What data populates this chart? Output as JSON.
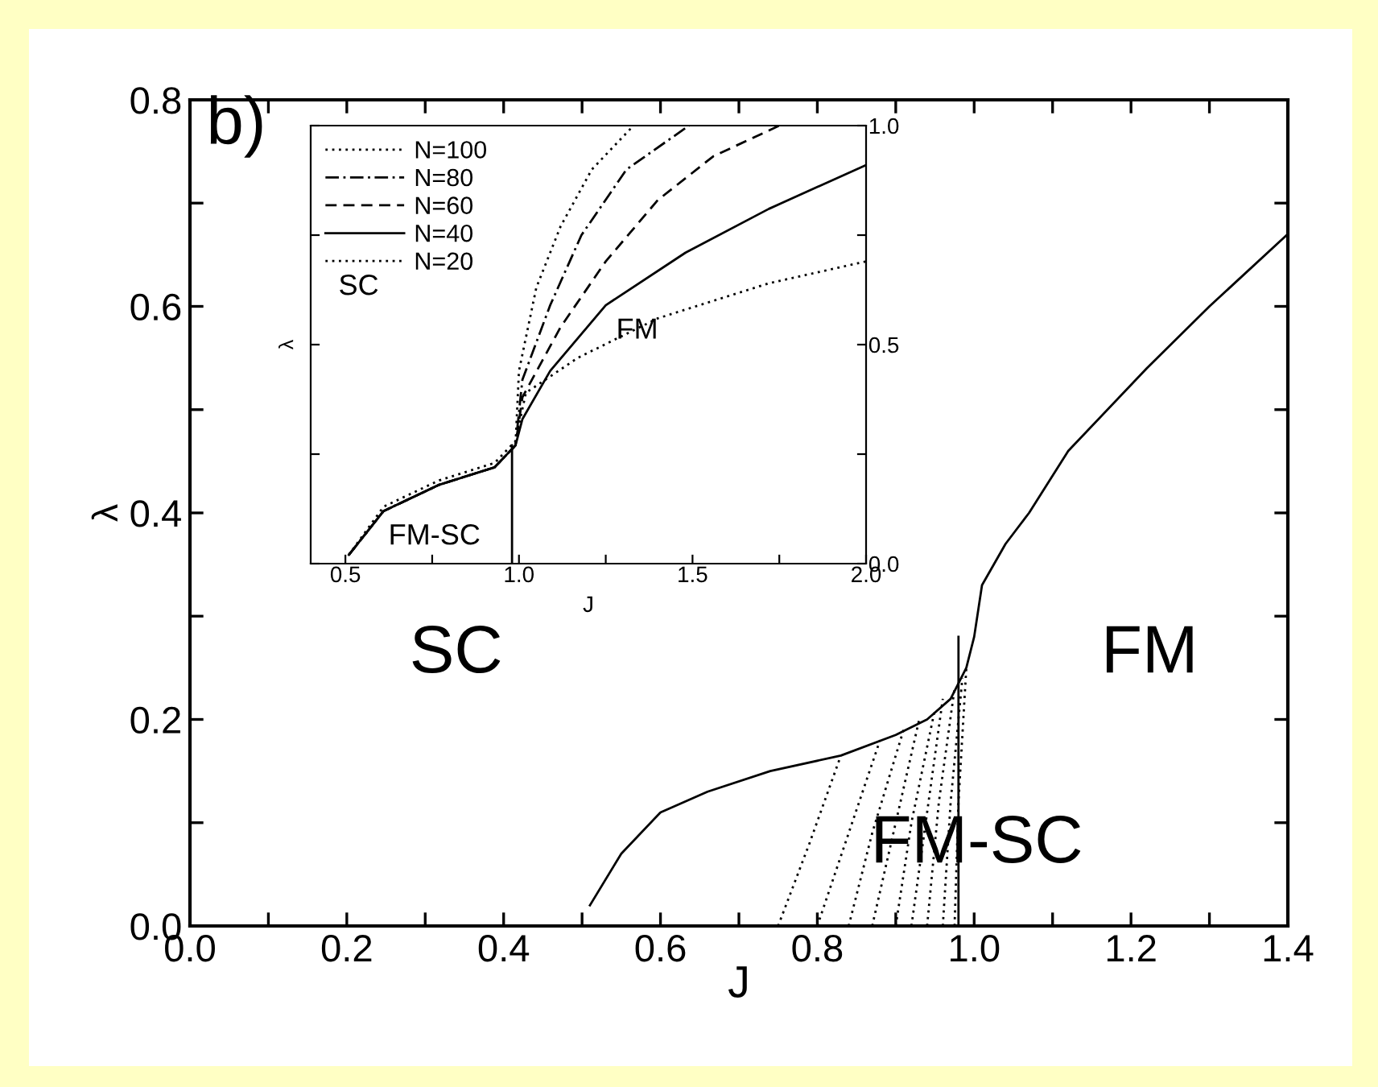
{
  "chart_data": [
    {
      "type": "line",
      "xlabel": "J",
      "ylabel": "λ",
      "annotations": [
        "b)",
        "SC",
        "FM",
        "FM-SC"
      ],
      "xlim": [
        0.0,
        1.4
      ],
      "ylim": [
        0.0,
        0.8
      ],
      "xticks": [
        {
          "value": 0,
          "label": "0.0"
        },
        {
          "value": 0.1,
          "label": null
        },
        0.2,
        {
          "value": 0.3,
          "label": null
        },
        0.4,
        {
          "value": 0.5,
          "label": null
        },
        0.6,
        {
          "value": 0.7,
          "label": null
        },
        0.8,
        {
          "value": 0.9,
          "label": null
        },
        {
          "value": 1,
          "label": "1.0"
        },
        {
          "value": 1.1,
          "label": null
        },
        1.2,
        {
          "value": 1.3,
          "label": null
        },
        1.4
      ],
      "yticks": [
        {
          "value": 0,
          "label": "0.0"
        },
        {
          "value": 0.1,
          "label": null
        },
        0.2,
        {
          "value": 0.3,
          "label": null
        },
        0.4,
        {
          "value": 0.5,
          "label": null
        },
        0.6,
        {
          "value": 0.7,
          "label": null
        },
        0.8
      ],
      "grid": false,
      "legend": false,
      "series": [
        {
          "color": "#000000",
          "line_style": "solid",
          "x": [
            0.51,
            0.55,
            0.6,
            0.66,
            0.74,
            0.83,
            0.9,
            0.94,
            0.97,
            0.99,
            1.0,
            1.01,
            1.04,
            1.07,
            1.12,
            1.22,
            1.3,
            1.4
          ],
          "values": [
            0.02,
            0.07,
            0.11,
            0.13,
            0.15,
            0.165,
            0.185,
            0.2,
            0.22,
            0.25,
            0.28,
            0.33,
            0.37,
            0.4,
            0.46,
            0.54,
            0.6,
            0.67
          ]
        },
        {
          "color": "#000000",
          "line_style": "dotted",
          "x": [
            0.75,
            0.79,
            0.83
          ],
          "values": [
            0.0,
            0.08,
            0.165
          ]
        },
        {
          "color": "#000000",
          "line_style": "dotted",
          "x": [
            0.8,
            0.84,
            0.88
          ],
          "values": [
            0.0,
            0.09,
            0.18
          ]
        },
        {
          "color": "#000000",
          "line_style": "dotted",
          "x": [
            0.84,
            0.87,
            0.91
          ],
          "values": [
            0.0,
            0.09,
            0.19
          ]
        },
        {
          "color": "#000000",
          "line_style": "dotted",
          "x": [
            0.87,
            0.9,
            0.93
          ],
          "values": [
            0.0,
            0.1,
            0.2
          ]
        },
        {
          "color": "#000000",
          "line_style": "dotted",
          "x": [
            0.9,
            0.92,
            0.95
          ],
          "values": [
            0.0,
            0.1,
            0.21
          ]
        },
        {
          "color": "#000000",
          "line_style": "dotted",
          "x": [
            0.92,
            0.94,
            0.96
          ],
          "values": [
            0.0,
            0.11,
            0.22
          ]
        },
        {
          "color": "#000000",
          "line_style": "dotted",
          "x": [
            0.94,
            0.955,
            0.975
          ],
          "values": [
            0.0,
            0.12,
            0.23
          ]
        },
        {
          "color": "#000000",
          "line_style": "dotted",
          "x": [
            0.96,
            0.97,
            0.985
          ],
          "values": [
            0.0,
            0.12,
            0.24
          ]
        },
        {
          "color": "#000000",
          "line_style": "dotted",
          "x": [
            0.975,
            0.98,
            0.99
          ],
          "values": [
            0.0,
            0.12,
            0.25
          ]
        },
        {
          "color": "#000000",
          "line_style": "solid",
          "x": [
            0.98,
            0.98
          ],
          "values": [
            0.0,
            0.28
          ]
        }
      ]
    },
    {
      "type": "line",
      "xlabel": "J",
      "ylabel": "λ",
      "annotations": [
        "SC",
        "FM",
        "FM-SC"
      ],
      "xlim": [
        0.4,
        2.0
      ],
      "ylim": [
        0.0,
        1.0
      ],
      "xticks": [
        0.5,
        {
          "value": 0.75,
          "label": null
        },
        {
          "value": 1,
          "label": "1.0"
        },
        {
          "value": 1.25,
          "label": null
        },
        1.5,
        {
          "value": 1.75,
          "label": null
        },
        {
          "value": 2,
          "label": "2.0"
        }
      ],
      "yticks": [
        {
          "value": 0,
          "label": "0.0"
        },
        {
          "value": 0.25,
          "label": null
        },
        0.5,
        {
          "value": 0.75,
          "label": null
        },
        {
          "value": 1,
          "label": "1.0"
        }
      ],
      "grid": false,
      "legend": "top left",
      "series": [
        {
          "name": "N=100",
          "color": "#000000",
          "line_style": "dotted",
          "x": [
            0.51,
            0.61,
            0.77,
            0.93,
            0.99,
            1.0,
            1.05,
            1.12,
            1.21,
            1.33
          ],
          "values": [
            0.02,
            0.12,
            0.18,
            0.22,
            0.27,
            0.44,
            0.63,
            0.77,
            0.9,
            1.0
          ]
        },
        {
          "name": "N=80",
          "color": "#000000",
          "line_style": "dashdot",
          "x": [
            0.51,
            0.61,
            0.77,
            0.93,
            0.99,
            1.01,
            1.09,
            1.18,
            1.31,
            1.49
          ],
          "values": [
            0.02,
            0.12,
            0.18,
            0.22,
            0.27,
            0.42,
            0.59,
            0.75,
            0.9,
            1.0
          ]
        },
        {
          "name": "N=60",
          "color": "#000000",
          "line_style": "dashed",
          "x": [
            0.51,
            0.61,
            0.77,
            0.93,
            0.99,
            1.01,
            1.12,
            1.25,
            1.4,
            1.56,
            1.75
          ],
          "values": [
            0.02,
            0.12,
            0.18,
            0.22,
            0.27,
            0.38,
            0.54,
            0.69,
            0.83,
            0.93,
            1.0
          ]
        },
        {
          "name": "N=40",
          "color": "#000000",
          "line_style": "solid",
          "x": [
            0.51,
            0.61,
            0.77,
            0.93,
            0.99,
            1.01,
            1.09,
            1.25,
            1.48,
            1.72,
            2.0
          ],
          "values": [
            0.02,
            0.12,
            0.18,
            0.22,
            0.27,
            0.33,
            0.44,
            0.59,
            0.71,
            0.81,
            0.91
          ]
        },
        {
          "name": "N=20",
          "color": "#000000",
          "line_style": "dotted",
          "x": [
            0.51,
            0.61,
            0.77,
            0.93,
            0.99,
            1.02,
            1.17,
            1.4,
            1.72,
            2.0
          ],
          "values": [
            0.02,
            0.13,
            0.19,
            0.23,
            0.28,
            0.39,
            0.47,
            0.56,
            0.64,
            0.69
          ]
        },
        {
          "color": "#000000",
          "line_style": "solid",
          "x": [
            0.98,
            0.98
          ],
          "values": [
            0.0,
            0.27
          ]
        }
      ]
    }
  ]
}
